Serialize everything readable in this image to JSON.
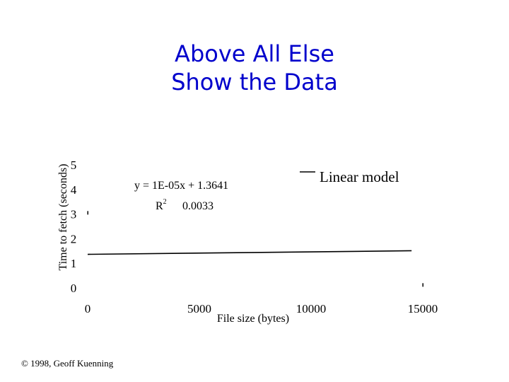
{
  "slide": {
    "title_line1": "Above All Else",
    "title_line2": "Show the Data",
    "footer": "© 1998, Geoff Kuenning"
  },
  "chart_data": {
    "type": "line",
    "xlabel": "File size (bytes)",
    "ylabel": "Time to fetch (seconds)",
    "xlim": [
      0,
      15000
    ],
    "ylim": [
      0,
      5
    ],
    "x_ticks": [
      "0",
      "5000",
      "10000",
      "15000"
    ],
    "y_ticks": [
      "0",
      "1",
      "2",
      "3",
      "4",
      "5"
    ],
    "grid": false,
    "legend_position": "top-right",
    "series": [
      {
        "name": "Linear model",
        "x": [
          0,
          14500
        ],
        "y": [
          1.3641,
          1.5091
        ]
      }
    ],
    "points": [
      {
        "x": 0,
        "y": 3.05
      },
      {
        "x": 15000,
        "y": 0.12
      }
    ],
    "annotation": {
      "equation": "y = 1E-05x + 1.3641",
      "r2_label": "R",
      "r2_sup": "2",
      "r2_value": "0.0033"
    },
    "colors": {
      "title": "#0000cc",
      "ink": "#000000"
    }
  }
}
